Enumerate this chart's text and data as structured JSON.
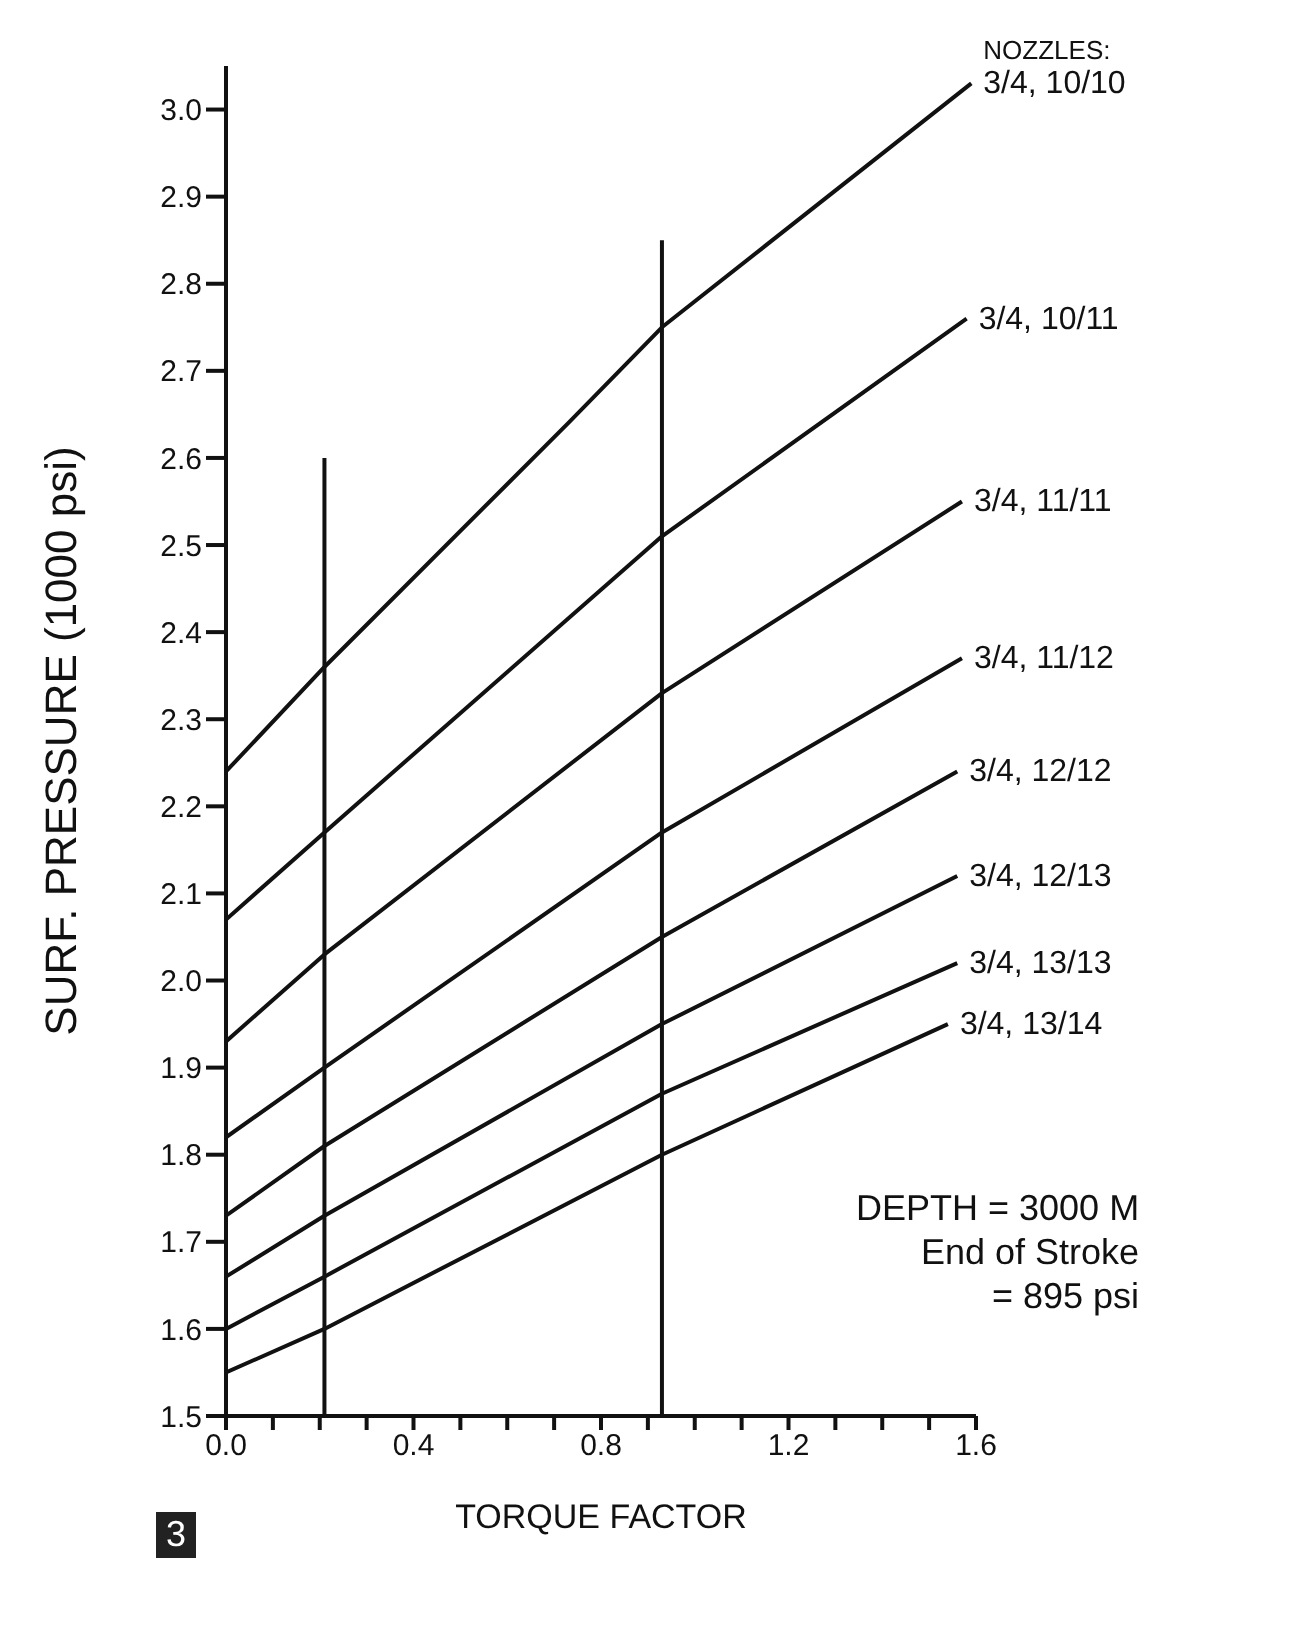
{
  "chart_data": {
    "type": "line",
    "xlabel": "TORQUE FACTOR",
    "ylabel": "SURF. PRESSURE (1000 psi)",
    "legend_title": "NOZZLES:",
    "marker": "none",
    "line_style": "solid",
    "xlim": [
      0,
      1.6
    ],
    "ylim": [
      1.5,
      3.05
    ],
    "xticks": [
      {
        "value": 0,
        "label": "0.0"
      },
      {
        "value": 0.1,
        "label": null
      },
      {
        "value": 0.2,
        "label": null
      },
      {
        "value": 0.3,
        "label": null
      },
      {
        "value": 0.4,
        "label": "0.4"
      },
      {
        "value": 0.5,
        "label": null
      },
      {
        "value": 0.6,
        "label": null
      },
      {
        "value": 0.7,
        "label": null
      },
      {
        "value": 0.8,
        "label": "0.8"
      },
      {
        "value": 0.9,
        "label": null
      },
      {
        "value": 1.0,
        "label": null
      },
      {
        "value": 1.1,
        "label": null
      },
      {
        "value": 1.2,
        "label": "1.2"
      },
      {
        "value": 1.3,
        "label": null
      },
      {
        "value": 1.4,
        "label": null
      },
      {
        "value": 1.5,
        "label": null
      },
      {
        "value": 1.6,
        "label": "1.6"
      }
    ],
    "yticks": [
      1.5,
      1.6,
      1.7,
      1.8,
      1.9,
      {
        "value": 2.0,
        "label": "2.0"
      },
      2.1,
      2.2,
      2.3,
      2.4,
      2.5,
      2.6,
      2.7,
      2.8,
      2.9,
      {
        "value": 3.0,
        "label": "3.0"
      }
    ],
    "series": [
      {
        "name": "3/4, 10/10",
        "color": "#111111",
        "x": [
          0,
          0.21,
          0.73,
          0.93,
          1.59
        ],
        "values": [
          2.24,
          2.36,
          2.64,
          2.75,
          3.03
        ]
      },
      {
        "name": "3/4, 10/11",
        "color": "#111111",
        "x": [
          0,
          0.21,
          0.93,
          1.58
        ],
        "values": [
          2.07,
          2.17,
          2.51,
          2.76
        ]
      },
      {
        "name": "3/4, 11/11",
        "color": "#111111",
        "x": [
          0,
          0.21,
          0.93,
          1.57
        ],
        "values": [
          1.93,
          2.03,
          2.33,
          2.55
        ]
      },
      {
        "name": "3/4, 11/12",
        "color": "#111111",
        "x": [
          0,
          0.21,
          0.93,
          1.57
        ],
        "values": [
          1.82,
          1.9,
          2.17,
          2.37
        ]
      },
      {
        "name": "3/4, 12/12",
        "color": "#111111",
        "x": [
          0,
          0.21,
          0.93,
          1.56
        ],
        "values": [
          1.73,
          1.81,
          2.05,
          2.24
        ]
      },
      {
        "name": "3/4, 12/13",
        "color": "#111111",
        "x": [
          0,
          0.21,
          0.93,
          1.56
        ],
        "values": [
          1.66,
          1.73,
          1.95,
          2.12
        ]
      },
      {
        "name": "3/4, 13/13",
        "color": "#111111",
        "x": [
          0,
          0.21,
          0.93,
          1.56
        ],
        "values": [
          1.6,
          1.66,
          1.87,
          2.02
        ]
      },
      {
        "name": "3/4, 13/14",
        "color": "#111111",
        "x": [
          0,
          0.21,
          0.93,
          1.54
        ],
        "values": [
          1.55,
          1.6,
          1.8,
          1.95
        ]
      },
      {
        "color": "#111111",
        "x": [
          0.21,
          0.21
        ],
        "values": [
          1.5,
          2.6
        ]
      },
      {
        "color": "#111111",
        "x": [
          0.93,
          0.93
        ],
        "values": [
          1.5,
          2.85
        ]
      }
    ],
    "annotations": [
      "DEPTH = 3000 M",
      "End of Stroke",
      "= 895 psi",
      "3"
    ]
  }
}
